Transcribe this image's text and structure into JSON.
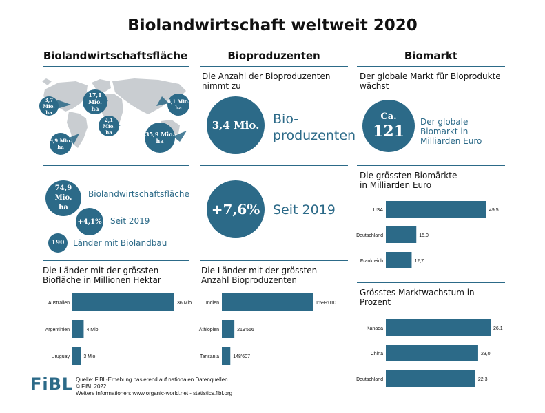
{
  "title": "Biolandwirtschaft weltweit 2020",
  "columns": {
    "area": "Biolandwirtschaftsfläche",
    "producers": "Bioproduzenten",
    "market": "Biomarkt"
  },
  "map_bubbles": [
    {
      "line1": "3,7 Mio.",
      "line2": "ha"
    },
    {
      "line1": "17,1 Mio.",
      "line2": "ha"
    },
    {
      "line1": "2,1 Mio.",
      "line2": "ha"
    },
    {
      "line1": "6,1 Mio.",
      "line2": "ha"
    },
    {
      "line1": "9,9 Mio.",
      "line2": "ha"
    },
    {
      "line1": "35,9 Mio.",
      "line2": "ha"
    }
  ],
  "area_stats": {
    "total_value_1": "74,9 Mio.",
    "total_value_2": "ha",
    "total_label": "Biolandwirtschaftsfläche",
    "growth_value": "+4,1%",
    "growth_label": "Seit 2019",
    "countries_value": "190",
    "countries_label": "Länder mit Biolandbau"
  },
  "producers_stats": {
    "intro": "Die Anzahl der Bioproduzenten nimmt zu",
    "count_value": "3,4 Mio.",
    "count_label_1": "Bio-",
    "count_label_2": "produzenten",
    "growth_value": "+7,6%",
    "growth_label": "Seit 2019"
  },
  "market_stats": {
    "intro": "Der globale Markt für Bioprodukte wächst",
    "value_prefix": "Ca.",
    "value": "121",
    "label": "Der globale Biomarkt in Milliarden Euro"
  },
  "chart_data": [
    {
      "type": "bar",
      "title": "Die Länder mit der grössten Biofläche in Millionen Hektar",
      "categories": [
        "Australien",
        "Argentinien",
        "Uruguay"
      ],
      "values": [
        36,
        4,
        3
      ],
      "value_labels": [
        "36 Mio.",
        "4 Mio.",
        "3 Mio."
      ],
      "orientation": "horizontal"
    },
    {
      "type": "bar",
      "title": "Die Länder mit der grössten Anzahl Bioproduzenten",
      "categories": [
        "Indien",
        "Äthiopien",
        "Tansania"
      ],
      "values": [
        1599010,
        219566,
        148607
      ],
      "value_labels": [
        "1'599'010",
        "219'566",
        "148'607"
      ],
      "orientation": "horizontal"
    },
    {
      "type": "bar",
      "title": "Die grössten Biomärkte in Milliarden Euro",
      "categories": [
        "USA",
        "Deutschland",
        "Frankreich"
      ],
      "values": [
        49.5,
        15.0,
        12.7
      ],
      "value_labels": [
        "49,5",
        "15,0",
        "12,7"
      ],
      "orientation": "horizontal"
    },
    {
      "type": "bar",
      "title": "Grösstes Marktwachstum in Prozent",
      "categories": [
        "Kanada",
        "China",
        "Deutschland"
      ],
      "values": [
        26.1,
        23.0,
        22.3
      ],
      "value_labels": [
        "26,1",
        "23,0",
        "22,3"
      ],
      "orientation": "horizontal"
    }
  ],
  "footer": {
    "logo": "FiBL",
    "line1": "Quelle: FiBL-Erhebung basierend auf nationalen Datenquellen",
    "line2": "© FiBL 2022",
    "line3": "Weitere informationen: www.organic-world.net - statistics.fibl.org"
  },
  "colors": {
    "accent": "#2c6a88",
    "map": "#c9cdd1",
    "text": "#111111"
  }
}
